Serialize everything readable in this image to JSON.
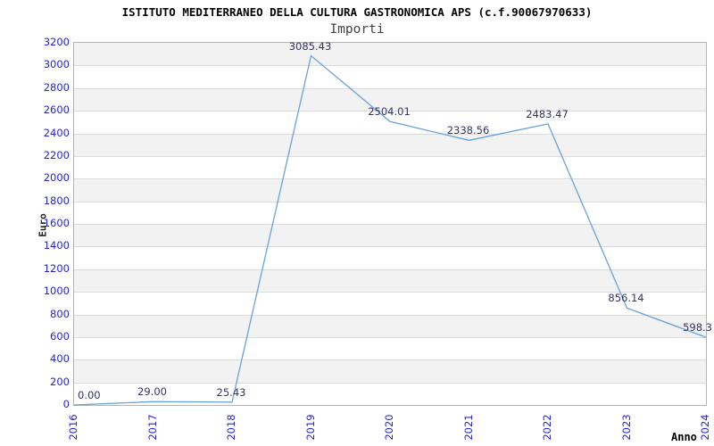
{
  "chart": {
    "title": "ISTITUTO MEDITERRANEO DELLA CULTURA GASTRONOMICA APS (c.f.90067970633)",
    "subtitle": "Importi",
    "y_axis_title": "Euro",
    "x_axis_title": "Anno"
  },
  "chart_data": {
    "type": "line",
    "title": "ISTITUTO MEDITERRANEO DELLA CULTURA GASTRONOMICA APS (c.f.90067970633)",
    "subtitle": "Importi",
    "xlabel": "Anno",
    "ylabel": "Euro",
    "categories": [
      "2016",
      "2017",
      "2018",
      "2019",
      "2020",
      "2021",
      "2022",
      "2023",
      "2024"
    ],
    "values": [
      0.0,
      29.0,
      25.43,
      3085.43,
      2504.01,
      2338.56,
      2483.47,
      856.14,
      598.3
    ],
    "point_labels": [
      "0.00",
      "29.00",
      "25.43",
      "3085.43",
      "2504.01",
      "2338.56",
      "2483.47",
      "856.14",
      "598.3"
    ],
    "ylim": [
      0,
      3200
    ],
    "ytick_step": 200,
    "grid": true,
    "bands_alternating": true,
    "legend_position": "none",
    "colors": {
      "line": "#67a2dc",
      "tick_label": "#2525cd",
      "data_label": "#333366",
      "band": "#f2f2f2",
      "grid_line": "#dcdcdc",
      "plot_border": "#b4b4b4",
      "title": "#000000",
      "subtitle": "#444444",
      "background": "#ffffff"
    }
  }
}
